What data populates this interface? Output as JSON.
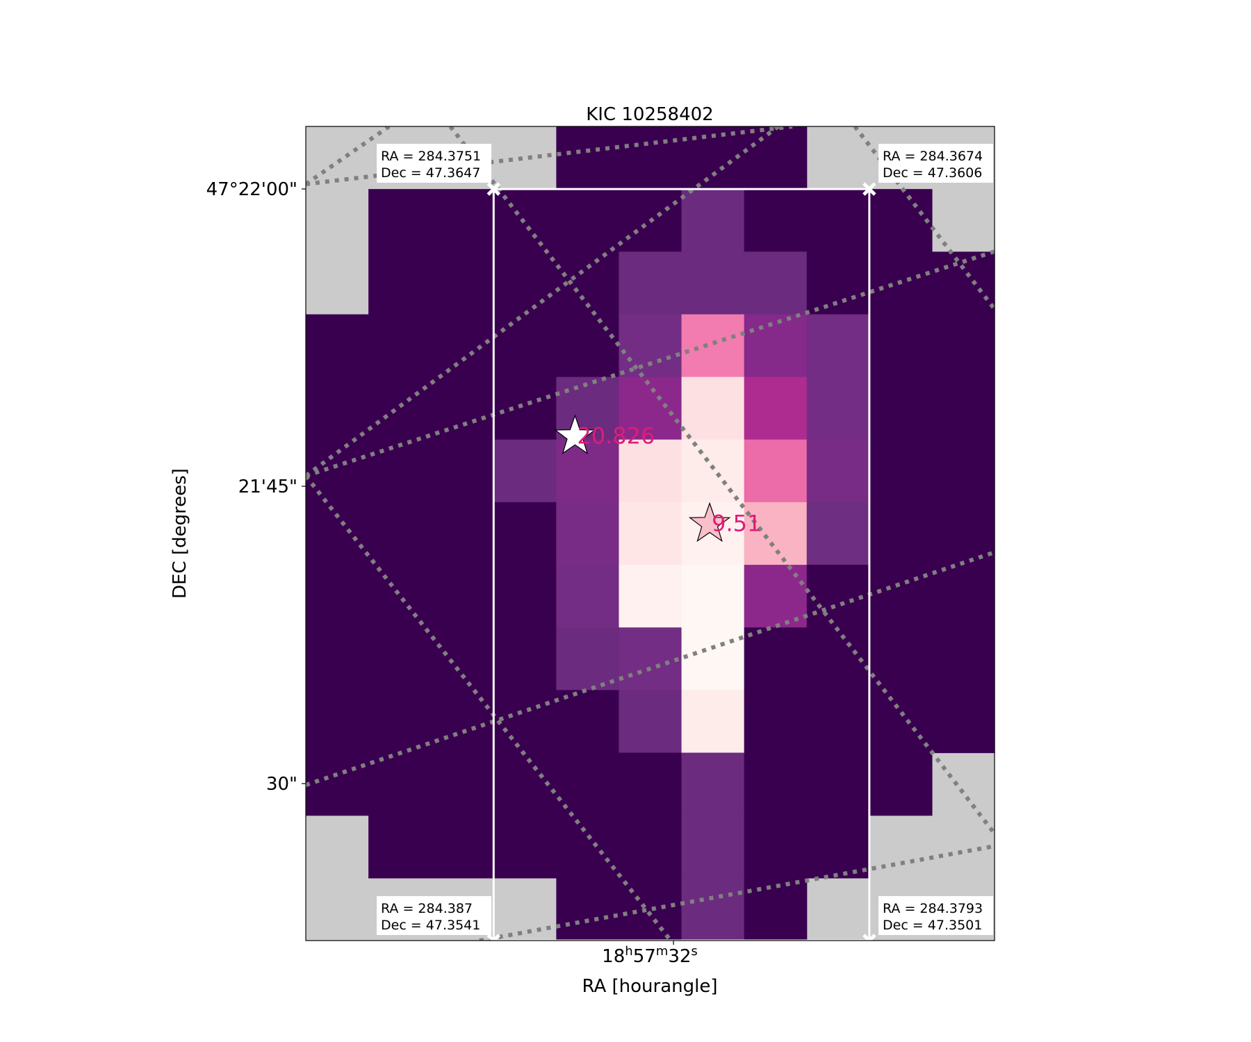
{
  "chart_data": {
    "type": "heatmap",
    "title": "KIC 10258402",
    "xlabel": "RA [hourangle]",
    "ylabel": "DEC [degrees]",
    "colormap": "RdPu_r",
    "x_ticks": [
      {
        "label": "18h57m32s",
        "main": "18",
        "sup1": "h",
        "mid": "57",
        "sup2": "m",
        "tail": "32",
        "sup3": "s"
      }
    ],
    "y_ticks": [
      "47°22'00\"",
      "21'45\"",
      "30\""
    ],
    "pixel_grid": {
      "cols": 11,
      "rows": 13,
      "values": [
        [
          null,
          null,
          null,
          null,
          0.0,
          0.0,
          0.0,
          0.0,
          null,
          null,
          null
        ],
        [
          null,
          0.0,
          0.0,
          0.0,
          0.0,
          0.0,
          0.17,
          0.0,
          0.0,
          0.0,
          null
        ],
        [
          null,
          0.0,
          0.0,
          0.0,
          0.0,
          0.17,
          0.17,
          0.17,
          0.0,
          0.0,
          0.0
        ],
        [
          0.0,
          0.0,
          0.0,
          0.0,
          0.0,
          0.2,
          0.75,
          0.27,
          0.2,
          0.0,
          0.0
        ],
        [
          0.0,
          0.0,
          0.0,
          0.0,
          0.17,
          0.3,
          0.96,
          0.5,
          0.2,
          0.0,
          0.0
        ],
        [
          0.0,
          0.0,
          0.0,
          0.17,
          0.24,
          0.96,
          0.98,
          0.7,
          0.22,
          0.0,
          0.0
        ],
        [
          0.0,
          0.0,
          0.0,
          0.0,
          0.22,
          0.97,
          0.99,
          0.87,
          0.18,
          0.0,
          0.0
        ],
        [
          0.0,
          0.0,
          0.0,
          0.0,
          0.2,
          0.99,
          1.0,
          0.3,
          0.0,
          0.0,
          0.0
        ],
        [
          0.0,
          0.0,
          0.0,
          0.0,
          0.17,
          0.2,
          1.0,
          0.0,
          0.0,
          0.0,
          0.0
        ],
        [
          0.0,
          0.0,
          0.0,
          0.0,
          0.0,
          0.17,
          0.98,
          0.0,
          0.0,
          0.0,
          0.0
        ],
        [
          0.0,
          0.0,
          0.0,
          0.0,
          0.0,
          0.0,
          0.17,
          0.0,
          0.0,
          0.0,
          null
        ],
        [
          null,
          0.0,
          0.0,
          0.0,
          0.0,
          0.0,
          0.17,
          0.0,
          0.0,
          null,
          null
        ],
        [
          null,
          null,
          null,
          null,
          0.0,
          0.0,
          0.17,
          0.0,
          null,
          null,
          null
        ]
      ]
    },
    "aperture_corners": [
      {
        "id": "top-left",
        "ra_label": "RA = 284.3751",
        "dec_label": "Dec = 47.3647"
      },
      {
        "id": "top-right",
        "ra_label": "RA = 284.3674",
        "dec_label": "Dec = 47.3606"
      },
      {
        "id": "bottom-left",
        "ra_label": "RA = 284.387",
        "dec_label": "Dec = 47.3541"
      },
      {
        "id": "bottom-right",
        "ra_label": "RA = 284.3793",
        "dec_label": "Dec = 47.3501"
      }
    ],
    "stars": [
      {
        "label": "20.826",
        "col": 4.3,
        "row": 4.95,
        "fill": "#ffffff"
      },
      {
        "label": "9.51",
        "col": 6.45,
        "row": 6.35,
        "fill": "#f9c0cb"
      }
    ],
    "colors": {
      "background_mask": "#cbcbcb",
      "low": "#3a0050",
      "high": "#fff7f3",
      "star_label": "#dd1d77",
      "aperture": "#ffffff",
      "grid_lines": "#808080"
    }
  }
}
